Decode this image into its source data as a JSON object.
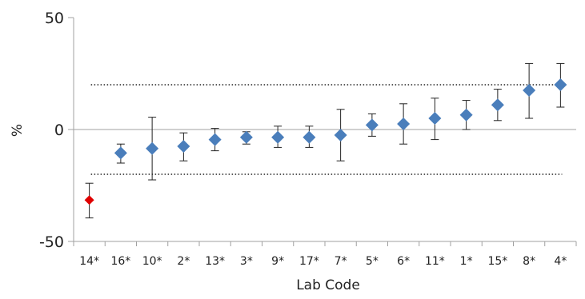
{
  "chart_data": {
    "type": "scatter",
    "title": "",
    "xlabel": "Lab Code",
    "ylabel": "%",
    "ylim": [
      -50,
      50
    ],
    "yticks": [
      {
        "value": -50,
        "label": "-50"
      },
      {
        "value": 0,
        "label": "0"
      },
      {
        "value": 50,
        "label": "50"
      }
    ],
    "categories": [
      "14*",
      "16*",
      "10*",
      "2*",
      "13*",
      "3*",
      "9*",
      "17*",
      "7*",
      "5*",
      "6*",
      "11*",
      "1*",
      "15*",
      "8*",
      "4*"
    ],
    "points": [
      {
        "x": "14*",
        "y": -31.5,
        "lower": -39.5,
        "upper": -24,
        "color": "#e00000"
      },
      {
        "x": "16*",
        "y": -10.5,
        "lower": -15,
        "upper": -6.5,
        "color": "#4a7ebb"
      },
      {
        "x": "10*",
        "y": -8.5,
        "lower": -22.5,
        "upper": 5.5,
        "color": "#4a7ebb"
      },
      {
        "x": "2*",
        "y": -7.5,
        "lower": -14,
        "upper": -1.5,
        "color": "#4a7ebb"
      },
      {
        "x": "13*",
        "y": -4.5,
        "lower": -9.5,
        "upper": 0.5,
        "color": "#4a7ebb"
      },
      {
        "x": "3*",
        "y": -3.5,
        "lower": -6.5,
        "upper": -1,
        "color": "#4a7ebb"
      },
      {
        "x": "9*",
        "y": -3.5,
        "lower": -8,
        "upper": 1.5,
        "color": "#4a7ebb"
      },
      {
        "x": "17*",
        "y": -3.5,
        "lower": -8,
        "upper": 1.5,
        "color": "#4a7ebb"
      },
      {
        "x": "7*",
        "y": -2.5,
        "lower": -14,
        "upper": 9,
        "color": "#4a7ebb"
      },
      {
        "x": "5*",
        "y": 2,
        "lower": -3,
        "upper": 7,
        "color": "#4a7ebb"
      },
      {
        "x": "6*",
        "y": 2.5,
        "lower": -6.5,
        "upper": 11.5,
        "color": "#4a7ebb"
      },
      {
        "x": "11*",
        "y": 5,
        "lower": -4.5,
        "upper": 14,
        "color": "#4a7ebb"
      },
      {
        "x": "1*",
        "y": 6.5,
        "lower": 0,
        "upper": 13,
        "color": "#4a7ebb"
      },
      {
        "x": "15*",
        "y": 11,
        "lower": 4,
        "upper": 18,
        "color": "#4a7ebb"
      },
      {
        "x": "8*",
        "y": 17.5,
        "lower": 5,
        "upper": 29.5,
        "color": "#4a7ebb"
      },
      {
        "x": "4*",
        "y": 20,
        "lower": 10,
        "upper": 29.5,
        "color": "#4a7ebb"
      }
    ],
    "reference_lines": [
      {
        "y": 0,
        "style": "solid"
      },
      {
        "y": 20,
        "style": "dotted"
      },
      {
        "y": -20,
        "style": "dotted"
      }
    ],
    "grid": false,
    "legend": "none",
    "colors": {
      "marker": "#4a7ebb",
      "outlier": "#e00000",
      "axis": "#a0a0a0",
      "errorbar": "#222222",
      "dotted_line": "#222222"
    }
  }
}
